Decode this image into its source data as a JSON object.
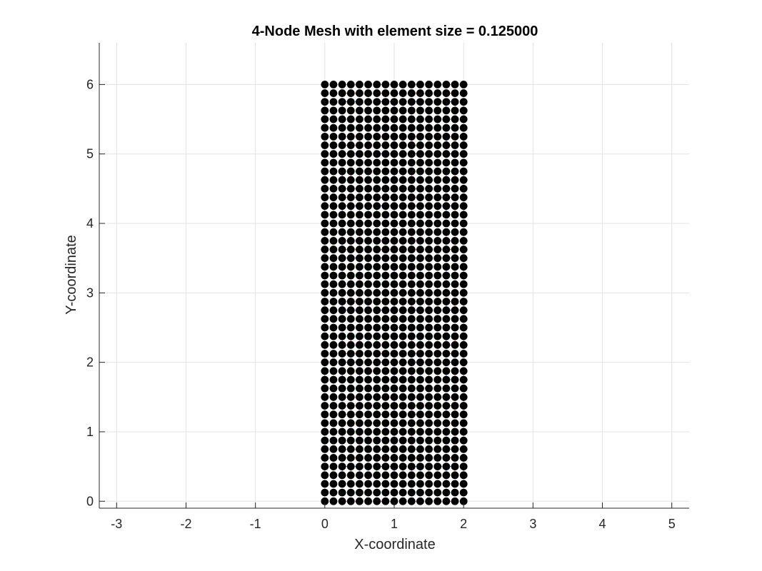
{
  "chart_data": {
    "type": "scatter",
    "title": "4-Node Mesh with element size = 0.125000",
    "xlabel": "X-coordinate",
    "ylabel": "Y-coordinate",
    "xlim": [
      -3.25,
      5.25
    ],
    "ylim": [
      -0.1,
      6.6
    ],
    "xticks": [
      -3,
      -2,
      -1,
      0,
      1,
      2,
      3,
      4,
      5
    ],
    "yticks": [
      0,
      1,
      2,
      3,
      4,
      5,
      6
    ],
    "grid": true,
    "mesh": {
      "element_size": 0.125,
      "x_range": [
        0,
        2
      ],
      "y_range": [
        0,
        6
      ],
      "node_count_x": 17,
      "node_count_y": 49
    },
    "colors": {
      "node": "#000000",
      "grid": "#e3e3e3",
      "axis": "#262626",
      "element_edges": [
        "#ff00ff",
        "#00ffff",
        "#00ff00",
        "#ffff00",
        "#0000ff",
        "#ff0000"
      ]
    }
  }
}
